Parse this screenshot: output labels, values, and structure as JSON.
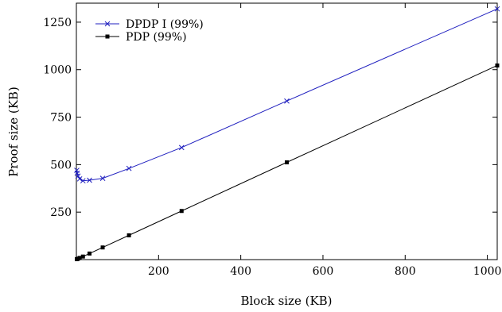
{
  "chart_data": {
    "type": "line",
    "xlabel": "Block size (KB)",
    "ylabel": "Proof size (KB)",
    "xlim": [
      0,
      1024
    ],
    "ylim": [
      0,
      1350
    ],
    "xticks": [
      200,
      400,
      600,
      800,
      1000
    ],
    "yticks": [
      250,
      500,
      750,
      1000,
      1250
    ],
    "grid": false,
    "legend_position": "top-left",
    "series": [
      {
        "name": "DPDP I (99%)",
        "color": "#1f1fbf",
        "marker": "x",
        "x": [
          1,
          2,
          4,
          8,
          16,
          32,
          64,
          128,
          256,
          512,
          1024
        ],
        "y": [
          470,
          455,
          440,
          425,
          415,
          418,
          428,
          480,
          590,
          835,
          1320
        ]
      },
      {
        "name": "PDP (99%)",
        "color": "#000000",
        "marker": "square",
        "x": [
          1,
          2,
          4,
          8,
          16,
          32,
          64,
          128,
          256,
          512,
          1024
        ],
        "y": [
          2,
          3,
          5,
          9,
          16,
          32,
          64,
          128,
          256,
          512,
          1022
        ]
      }
    ]
  }
}
